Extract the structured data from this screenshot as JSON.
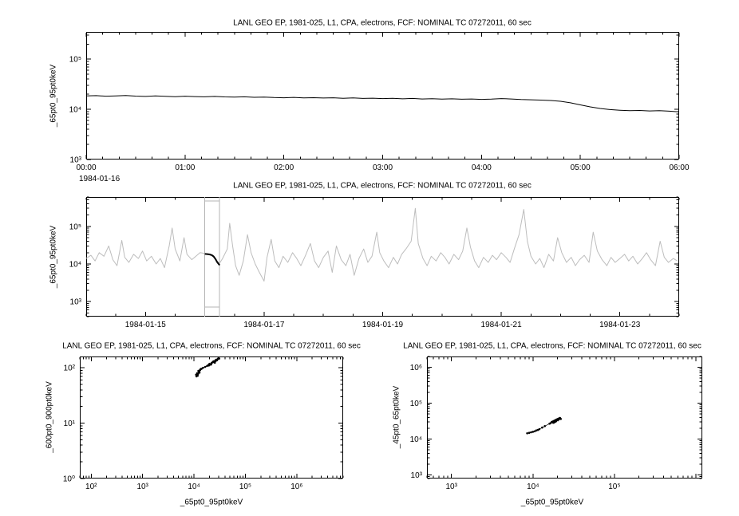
{
  "window": {
    "background": "#ffffff"
  },
  "colors": {
    "data": "#000000",
    "context_gray": "#bdbdbd",
    "box_gray": "#b4b4b4"
  },
  "chart_data": [
    {
      "id": "timeseries-zoom",
      "type": "line",
      "title": "LANL GEO EP, 1981-025, L1, CPA, electrons, FCF: NOMINAL TC 07272011, 60 sec",
      "ylabel": "_65pt0_95pt0keV",
      "xlabel": "",
      "x_axis_date_label": "1984-01-16",
      "x_log": false,
      "xlim": [
        0,
        6
      ],
      "ylim": [
        1000,
        350000
      ],
      "x_ticks": [
        0,
        1,
        2,
        3,
        4,
        5,
        6
      ],
      "x_tick_labels": [
        "00:00",
        "01:00",
        "02:00",
        "03:00",
        "04:00",
        "05:00",
        "06:00"
      ],
      "x_minor_step": 0.16667,
      "y_ticks": [
        1000,
        10000,
        100000
      ],
      "grid": false,
      "legend": "none",
      "series": [
        {
          "name": "electron flux 65-95 keV (1984-01-16 00:00-06:00)",
          "color": "#000000",
          "width": 1,
          "x_start": 0,
          "x_step": 0.1,
          "y": [
            18500,
            18800,
            18300,
            18600,
            18900,
            18400,
            18100,
            18500,
            18200,
            17900,
            18300,
            18000,
            17800,
            18100,
            17700,
            17500,
            17800,
            17400,
            17600,
            17200,
            17000,
            17300,
            16900,
            17100,
            16800,
            17000,
            16600,
            16900,
            16500,
            16700,
            16400,
            16600,
            16200,
            16500,
            16100,
            16300,
            16000,
            16200,
            15900,
            16100,
            15800,
            16000,
            16400,
            16100,
            15700,
            15500,
            15300,
            15000,
            14500,
            13500,
            12300,
            11200,
            10400,
            9900,
            9600,
            9400,
            9500,
            9300,
            9400,
            9200,
            8900
          ]
        }
      ]
    },
    {
      "id": "timeseries-context",
      "type": "line",
      "title": "LANL GEO EP, 1981-025, L1, CPA, electrons, FCF: NOMINAL TC 07272011, 60 sec",
      "ylabel": "_65pt0_95pt0keV",
      "xlabel": "",
      "x_log": false,
      "x_unit": "days since 1984-01-14 00:00",
      "xlim": [
        0,
        10
      ],
      "ylim": [
        400,
        600000
      ],
      "x_ticks": [
        1,
        3,
        5,
        7,
        9
      ],
      "x_tick_labels": [
        "1984-01-15",
        "1984-01-17",
        "1984-01-19",
        "1984-01-21",
        "1984-01-23"
      ],
      "x_minor_step": 0.5,
      "y_ticks": [
        1000,
        10000,
        100000
      ],
      "highlight_x": [
        2.0,
        2.25
      ],
      "highlight_color": "#b4b4b4",
      "grid": false,
      "legend": "none",
      "series": [
        {
          "name": "electron flux 65-95 keV (full interval, context)",
          "color": "#bdbdbd",
          "width": 1,
          "x": [
            0.0,
            0.08,
            0.15,
            0.22,
            0.3,
            0.38,
            0.45,
            0.52,
            0.6,
            0.65,
            0.72,
            0.8,
            0.88,
            0.95,
            1.02,
            1.1,
            1.18,
            1.25,
            1.32,
            1.4,
            1.45,
            1.5,
            1.58,
            1.65,
            1.7,
            1.78,
            1.85,
            1.92,
            2.0,
            2.05,
            2.1,
            2.15,
            2.2,
            2.25,
            2.3,
            2.38,
            2.42,
            2.47,
            2.52,
            2.58,
            2.65,
            2.72,
            2.78,
            2.85,
            2.92,
            3.0,
            3.05,
            3.12,
            3.18,
            3.25,
            3.32,
            3.4,
            3.48,
            3.55,
            3.62,
            3.7,
            3.78,
            3.85,
            3.92,
            4.0,
            4.08,
            4.15,
            4.22,
            4.3,
            4.38,
            4.45,
            4.52,
            4.6,
            4.68,
            4.75,
            4.82,
            4.9,
            4.95,
            5.02,
            5.1,
            5.18,
            5.25,
            5.32,
            5.4,
            5.48,
            5.55,
            5.6,
            5.68,
            5.75,
            5.82,
            5.9,
            5.98,
            6.05,
            6.12,
            6.2,
            6.28,
            6.35,
            6.42,
            6.48,
            6.55,
            6.62,
            6.7,
            6.78,
            6.85,
            6.92,
            7.0,
            7.08,
            7.15,
            7.22,
            7.3,
            7.38,
            7.44,
            7.5,
            7.58,
            7.65,
            7.72,
            7.8,
            7.88,
            7.95,
            8.02,
            8.1,
            8.18,
            8.25,
            8.32,
            8.4,
            8.48,
            8.55,
            8.62,
            8.7,
            8.78,
            8.85,
            8.92,
            9.0,
            9.08,
            9.15,
            9.22,
            9.3,
            9.38,
            9.45,
            9.52,
            9.6,
            9.68,
            9.75,
            9.82,
            9.9,
            9.97
          ],
          "y": [
            14000,
            17000,
            12000,
            20000,
            16000,
            30000,
            13000,
            9000,
            42000,
            15000,
            11000,
            18000,
            14000,
            22000,
            12000,
            16000,
            10000,
            14000,
            8000,
            30000,
            90000,
            25000,
            12000,
            50000,
            18000,
            13000,
            16000,
            20000,
            19000,
            18500,
            17500,
            15000,
            12000,
            10500,
            14000,
            25000,
            120000,
            30000,
            9000,
            5000,
            12000,
            60000,
            20000,
            10000,
            6000,
            3500,
            15000,
            45000,
            12000,
            8000,
            16000,
            11000,
            20000,
            14000,
            9000,
            17000,
            35000,
            12000,
            8000,
            15000,
            22000,
            6000,
            30000,
            13000,
            9000,
            18000,
            5000,
            14000,
            25000,
            11000,
            16000,
            70000,
            20000,
            12000,
            8000,
            15000,
            10000,
            18000,
            26000,
            40000,
            300000,
            35000,
            14000,
            9000,
            16000,
            12000,
            20000,
            15000,
            10000,
            18000,
            13000,
            22000,
            90000,
            28000,
            12000,
            8000,
            15000,
            11000,
            17000,
            13000,
            20000,
            15000,
            11000,
            25000,
            60000,
            280000,
            40000,
            16000,
            10000,
            14000,
            8000,
            18000,
            12000,
            50000,
            20000,
            11000,
            15000,
            9000,
            13000,
            17000,
            11000,
            70000,
            22000,
            13000,
            9000,
            15000,
            11000,
            14000,
            18000,
            12000,
            16000,
            10000,
            14000,
            20000,
            13000,
            9000,
            40000,
            15000,
            11000,
            14000,
            12000
          ]
        },
        {
          "name": "selected interval 1984-01-16 00:00-06:00",
          "color": "#000000",
          "width": 2,
          "x": [
            2.0,
            2.04,
            2.08,
            2.12,
            2.15,
            2.18,
            2.21,
            2.25
          ],
          "y": [
            18500,
            18300,
            17900,
            17200,
            15800,
            13500,
            11200,
            9300
          ]
        }
      ]
    },
    {
      "id": "scatter-600-900-vs-65-95",
      "type": "scatter",
      "title": "LANL GEO EP, 1981-025, L1, CPA, electrons, FCF: NOMINAL TC 07272011, 60 sec",
      "ylabel": "_600pt0_900pt0keV",
      "xlabel": "_65pt0_95pt0keV",
      "x_log": true,
      "xlim": [
        60,
        8000000
      ],
      "ylim": [
        1,
        160
      ],
      "x_ticks": [
        100,
        1000,
        10000,
        100000,
        1000000
      ],
      "y_ticks": [
        1,
        10,
        100
      ],
      "grid": false,
      "legend": "none",
      "series": [
        {
          "name": "600-900 keV vs 65-95 keV",
          "color": "#000000",
          "connect": true,
          "width": 0.7,
          "marker": 1.3,
          "x": [
            11000,
            11500,
            12000,
            12500,
            11800,
            12200,
            13000,
            12800,
            13500,
            11200,
            12400,
            11600,
            13200,
            12600,
            14000,
            15000,
            16500,
            18000,
            19000,
            20000,
            21000,
            22000,
            23000,
            24000,
            25000,
            26000,
            27000,
            28000,
            29000,
            30000,
            25500,
            23500,
            21500,
            19500,
            26500,
            31000
          ],
          "y": [
            75,
            80,
            78,
            85,
            72,
            88,
            90,
            82,
            95,
            70,
            84,
            76,
            92,
            86,
            96,
            100,
            104,
            108,
            112,
            118,
            114,
            122,
            126,
            131,
            128,
            136,
            140,
            137,
            144,
            150,
            124,
            127,
            115,
            110,
            133,
            147
          ]
        }
      ]
    },
    {
      "id": "scatter-45-65-vs-65-95",
      "type": "scatter",
      "title": "LANL GEO EP, 1981-025, L1, CPA, electrons, FCF: NOMINAL TC 07272011, 60 sec",
      "ylabel": "_45pt0_65pt0keV",
      "xlabel": "_65pt0_95pt0keV",
      "x_log": true,
      "xlim": [
        500,
        1200000
      ],
      "ylim": [
        800,
        2000000
      ],
      "x_ticks": [
        1000,
        10000,
        100000
      ],
      "y_ticks": [
        1000,
        10000,
        100000,
        1000000
      ],
      "grid": false,
      "legend": "none",
      "series": [
        {
          "name": "45-65 keV vs 65-95 keV",
          "color": "#000000",
          "connect": true,
          "width": 0.7,
          "marker": 1.3,
          "x": [
            8500,
            9000,
            9500,
            10000,
            10500,
            11000,
            11500,
            12000,
            13000,
            14000,
            16000,
            16500,
            17000,
            17500,
            18000,
            18500,
            19000,
            19500,
            20000,
            20500,
            21000,
            18200,
            19200,
            20200,
            17800,
            18800,
            19800,
            21500,
            22000,
            20800
          ],
          "y": [
            14500,
            15000,
            15500,
            16000,
            16500,
            17500,
            18000,
            19000,
            21000,
            23000,
            27000,
            28000,
            30000,
            31000,
            32000,
            33000,
            34000,
            35000,
            36000,
            37000,
            38000,
            29000,
            31500,
            33500,
            28500,
            30500,
            34500,
            39000,
            36500,
            35500
          ]
        }
      ]
    }
  ]
}
